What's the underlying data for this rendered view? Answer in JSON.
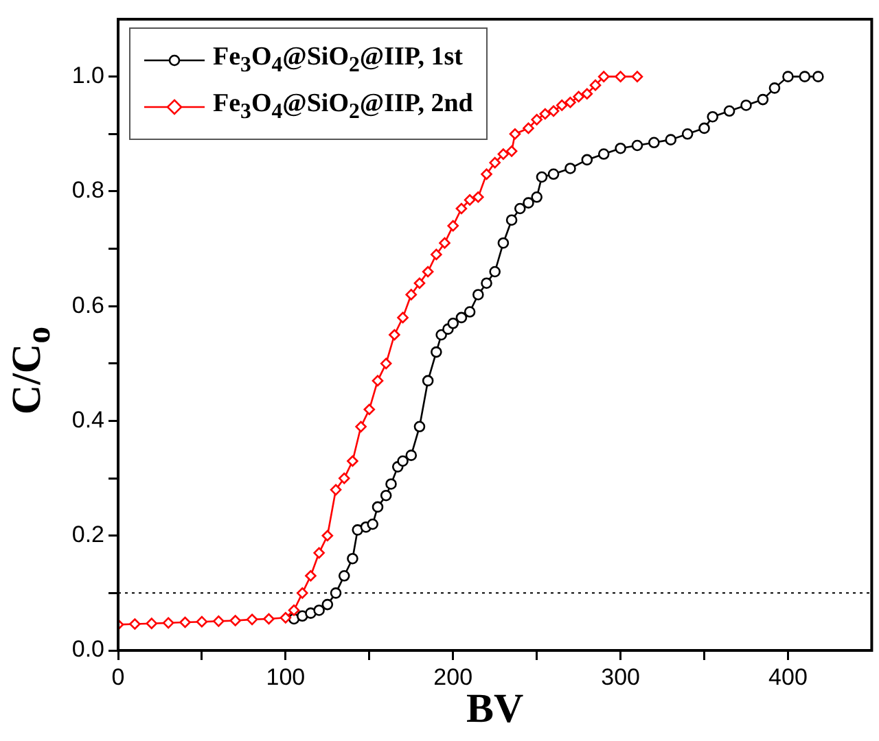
{
  "chart_data": {
    "type": "line",
    "xlabel": "BV",
    "ylabel": "C/C$_{o}$",
    "xlim": [
      0,
      450
    ],
    "ylim": [
      0,
      1.1
    ],
    "xticks": [
      0,
      {
        "value": 50,
        "label": null
      },
      100,
      {
        "value": 150,
        "label": null
      },
      200,
      {
        "value": 250,
        "label": null
      },
      300,
      {
        "value": 350,
        "label": null
      },
      400
    ],
    "yticks": [
      {
        "value": 0,
        "label": "0.0"
      },
      {
        "value": 0.1,
        "label": null
      },
      {
        "value": 0.2,
        "label": "0.2"
      },
      {
        "value": 0.3,
        "label": null
      },
      {
        "value": 0.4,
        "label": "0.4"
      },
      {
        "value": 0.5,
        "label": null
      },
      {
        "value": 0.6,
        "label": "0.6"
      },
      {
        "value": 0.7,
        "label": null
      },
      {
        "value": 0.8,
        "label": "0.8"
      },
      {
        "value": 0.9,
        "label": null
      },
      {
        "value": 1.0,
        "label": "1.0"
      }
    ],
    "grid": false,
    "legend": "top left",
    "line_style": "solid",
    "ref_lines": [
      {
        "axis": "y",
        "value": 0.1,
        "color": "#000000",
        "line_style": "dotted"
      }
    ],
    "series": [
      {
        "name": "Fe$_{3}$O$_{4}$@SiO$_{2}$@IIP, 1st",
        "color": "#000000",
        "marker": "circle",
        "x": [
          105,
          110,
          115,
          120,
          125,
          130,
          135,
          140,
          143,
          148,
          152,
          155,
          160,
          163,
          167,
          170,
          175,
          180,
          185,
          190,
          193,
          197,
          200,
          205,
          210,
          215,
          220,
          225,
          230,
          235,
          240,
          245,
          250,
          253,
          260,
          270,
          280,
          290,
          300,
          310,
          320,
          330,
          340,
          350,
          355,
          365,
          375,
          385,
          392,
          400,
          410,
          418
        ],
        "values": [
          0.055,
          0.06,
          0.065,
          0.07,
          0.08,
          0.1,
          0.13,
          0.16,
          0.21,
          0.215,
          0.22,
          0.25,
          0.27,
          0.29,
          0.32,
          0.33,
          0.34,
          0.39,
          0.47,
          0.52,
          0.55,
          0.56,
          0.57,
          0.58,
          0.59,
          0.62,
          0.64,
          0.66,
          0.71,
          0.75,
          0.77,
          0.78,
          0.79,
          0.825,
          0.83,
          0.84,
          0.855,
          0.865,
          0.875,
          0.88,
          0.885,
          0.89,
          0.9,
          0.91,
          0.93,
          0.94,
          0.95,
          0.96,
          0.98,
          1.0,
          1.0,
          1.0
        ]
      },
      {
        "name": "Fe$_{3}$O$_{4}$@SiO$_{2}$@IIP, 2nd",
        "color": "#ff0000",
        "marker": "diamond",
        "x": [
          0,
          10,
          20,
          30,
          40,
          50,
          60,
          70,
          80,
          90,
          100,
          105,
          110,
          115,
          120,
          125,
          130,
          135,
          140,
          145,
          150,
          155,
          160,
          165,
          170,
          175,
          180,
          185,
          190,
          195,
          200,
          205,
          210,
          215,
          220,
          225,
          230,
          235,
          237,
          245,
          250,
          255,
          260,
          265,
          270,
          275,
          280,
          285,
          290,
          300,
          310
        ],
        "values": [
          0.045,
          0.046,
          0.047,
          0.048,
          0.049,
          0.05,
          0.051,
          0.052,
          0.054,
          0.055,
          0.057,
          0.07,
          0.1,
          0.13,
          0.17,
          0.2,
          0.28,
          0.3,
          0.33,
          0.39,
          0.42,
          0.47,
          0.5,
          0.55,
          0.58,
          0.62,
          0.64,
          0.66,
          0.69,
          0.71,
          0.74,
          0.77,
          0.785,
          0.79,
          0.83,
          0.85,
          0.865,
          0.87,
          0.9,
          0.91,
          0.925,
          0.935,
          0.94,
          0.95,
          0.955,
          0.965,
          0.97,
          0.985,
          1.0,
          1.0,
          1.0
        ]
      }
    ]
  }
}
